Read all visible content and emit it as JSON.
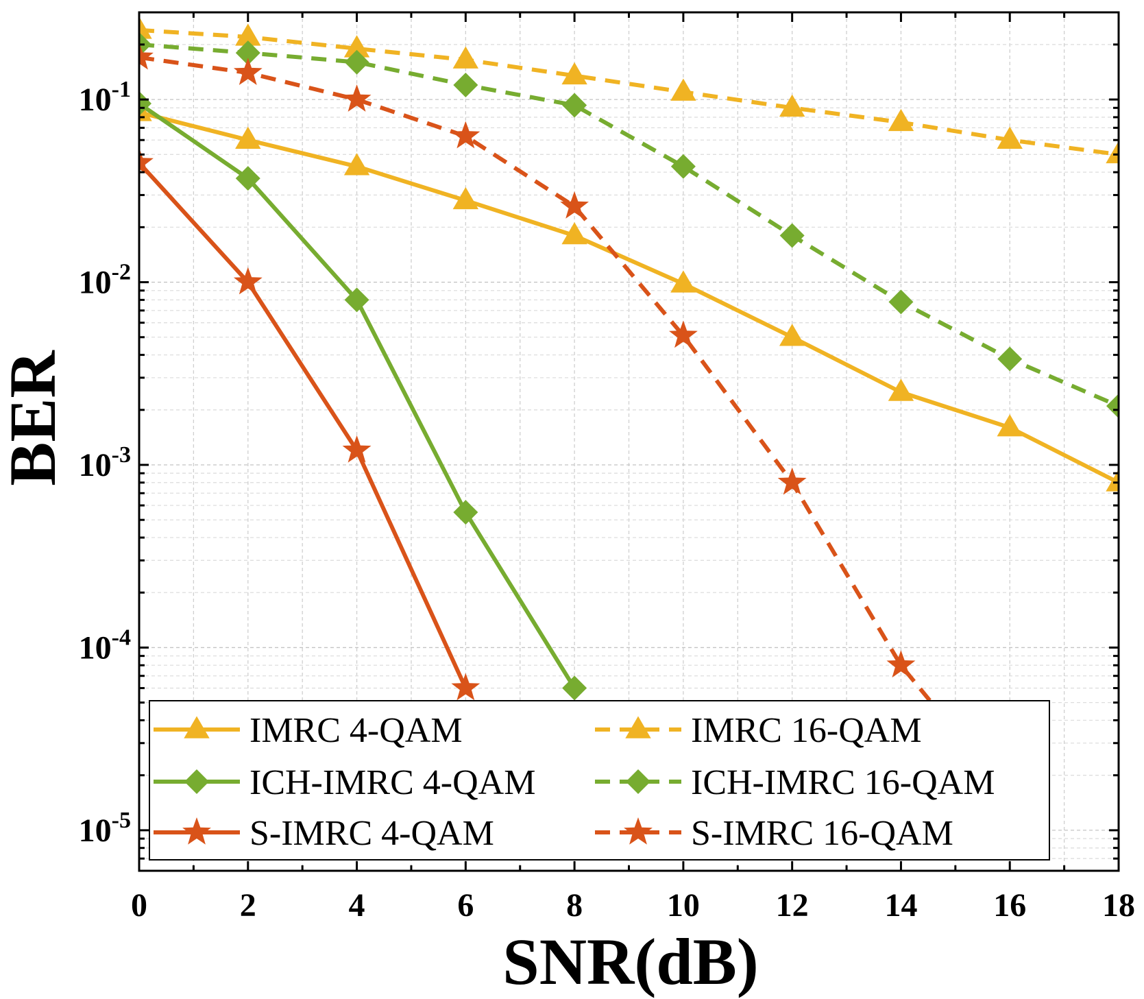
{
  "chart_data": {
    "type": "line",
    "xlabel": "SNR(dB)",
    "ylabel": "BER",
    "x_scale": "linear",
    "y_scale": "log",
    "xlim": [
      0,
      18
    ],
    "ylim": [
      6e-06,
      0.3
    ],
    "x_ticks": [
      "0",
      "2",
      "4",
      "6",
      "8",
      "10",
      "12",
      "14",
      "16",
      "18"
    ],
    "y_ticks": [
      {
        "base": "10",
        "exp": "-1",
        "value": 0.1
      },
      {
        "base": "10",
        "exp": "-2",
        "value": 0.01
      },
      {
        "base": "10",
        "exp": "-3",
        "value": 0.001
      },
      {
        "base": "10",
        "exp": "-4",
        "value": 0.0001
      },
      {
        "base": "10",
        "exp": "-5",
        "value": 1e-05
      }
    ],
    "grid": true,
    "legend_position": "bottom-left",
    "series": [
      {
        "name": "IMRC 4-QAM",
        "color": "#F0B323",
        "dash": "solid",
        "marker": "triangle",
        "x": [
          0,
          2,
          4,
          6,
          8,
          10,
          12,
          14,
          16,
          18
        ],
        "y": [
          0.085,
          0.06,
          0.043,
          0.028,
          0.018,
          0.0098,
          0.005,
          0.0025,
          0.0016,
          0.0008
        ]
      },
      {
        "name": "IMRC 16-QAM",
        "color": "#F0B323",
        "dash": "dashed",
        "marker": "triangle",
        "x": [
          0,
          2,
          4,
          6,
          8,
          10,
          12,
          14,
          16,
          18
        ],
        "y": [
          0.24,
          0.22,
          0.19,
          0.165,
          0.135,
          0.11,
          0.09,
          0.075,
          0.06,
          0.05
        ]
      },
      {
        "name": "ICH-IMRC 4-QAM",
        "color": "#77AC30",
        "dash": "solid",
        "marker": "diamond",
        "x": [
          0,
          2,
          4,
          6,
          8
        ],
        "y": [
          0.095,
          0.037,
          0.008,
          0.00055,
          6e-05
        ]
      },
      {
        "name": "ICH-IMRC 16-QAM",
        "color": "#77AC30",
        "dash": "dashed",
        "marker": "diamond",
        "x": [
          0,
          2,
          4,
          6,
          8,
          10,
          12,
          14,
          16,
          18
        ],
        "y": [
          0.2,
          0.18,
          0.16,
          0.12,
          0.093,
          0.043,
          0.018,
          0.0078,
          0.0038,
          0.0021
        ]
      },
      {
        "name": "S-IMRC 4-QAM",
        "color": "#D95319",
        "dash": "solid",
        "marker": "star",
        "x": [
          0,
          2,
          4,
          6
        ],
        "y": [
          0.045,
          0.01,
          0.0012,
          6e-05
        ]
      },
      {
        "name": "S-IMRC 16-QAM",
        "color": "#D95319",
        "dash": "dashed",
        "marker": "star",
        "x": [
          0,
          2,
          4,
          6,
          8,
          10,
          12,
          14,
          16
        ],
        "y": [
          0.17,
          0.14,
          0.1,
          0.063,
          0.026,
          0.0051,
          0.0008,
          8e-05,
          1.5e-05
        ]
      }
    ]
  }
}
